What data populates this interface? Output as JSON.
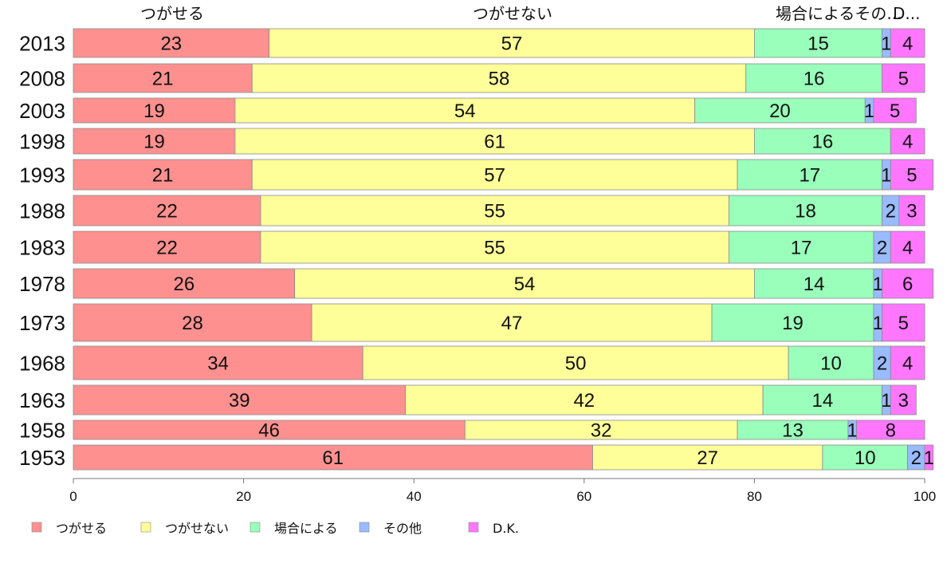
{
  "chart_data": {
    "type": "bar",
    "orientation": "horizontal",
    "stacked": true,
    "categories": [
      "2013",
      "2008",
      "2003",
      "1998",
      "1993",
      "1988",
      "1983",
      "1978",
      "1973",
      "1968",
      "1963",
      "1958",
      "1953"
    ],
    "series": [
      {
        "name": "つがせる",
        "color": "#ff9090",
        "values": [
          23,
          21,
          19,
          19,
          21,
          22,
          22,
          26,
          28,
          34,
          39,
          46,
          61
        ]
      },
      {
        "name": "つがせない",
        "color": "#ffff99",
        "values": [
          57,
          58,
          54,
          61,
          57,
          55,
          55,
          54,
          47,
          50,
          42,
          32,
          27
        ]
      },
      {
        "name": "場合による",
        "color": "#99ffbb",
        "values": [
          15,
          16,
          20,
          16,
          17,
          18,
          17,
          14,
          19,
          10,
          14,
          13,
          10
        ]
      },
      {
        "name": "その他",
        "color": "#99bbff",
        "values": [
          1,
          0,
          1,
          0,
          1,
          2,
          2,
          1,
          1,
          2,
          1,
          1,
          2
        ]
      },
      {
        "name": "D.K.",
        "color": "#ff77ff",
        "values": [
          4,
          5,
          5,
          4,
          5,
          3,
          4,
          6,
          5,
          4,
          3,
          8,
          1
        ]
      }
    ],
    "top_labels": [
      "つがせる",
      "つがせない",
      "場合によるその...",
      "D..."
    ],
    "x_ticks": [
      "0",
      "20",
      "40",
      "60",
      "80",
      "100"
    ],
    "xlim": [
      0,
      100
    ],
    "legend": "bottom-left",
    "grid": false
  }
}
